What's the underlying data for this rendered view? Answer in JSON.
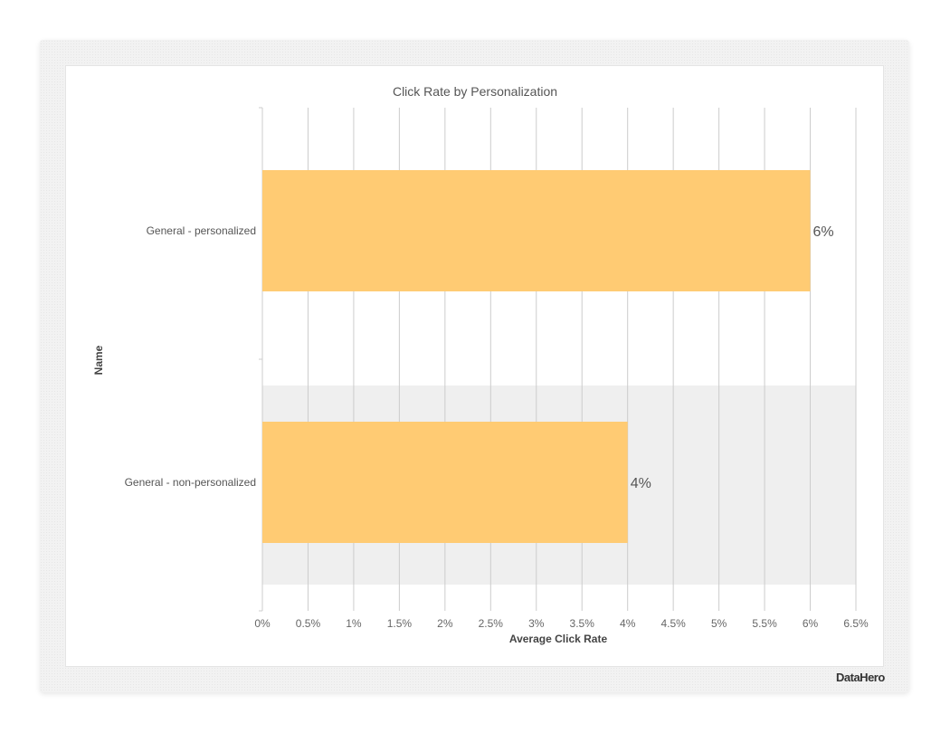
{
  "brand": "DataHero",
  "chart_data": {
    "type": "bar",
    "orientation": "horizontal",
    "title": "Click Rate by Personalization",
    "xlabel": "Average Click Rate",
    "ylabel": "Name",
    "categories": [
      "General - personalized",
      "General - non-personalized"
    ],
    "values": [
      6,
      4
    ],
    "data_labels": [
      "6%",
      "4%"
    ],
    "xlim": [
      0,
      6.5
    ],
    "x_ticks": [
      0,
      0.5,
      1,
      1.5,
      2,
      2.5,
      3,
      3.5,
      4,
      4.5,
      5,
      5.5,
      6,
      6.5
    ],
    "x_tick_labels": [
      "0%",
      "0.5%",
      "1%",
      "1.5%",
      "2%",
      "2.5%",
      "3%",
      "3.5%",
      "4%",
      "4.5%",
      "5%",
      "5.5%",
      "6%",
      "6.5%"
    ],
    "grid": true,
    "bar_color": "#ffcb73",
    "band_color": "#efefef",
    "grid_color": "#cccccc"
  }
}
